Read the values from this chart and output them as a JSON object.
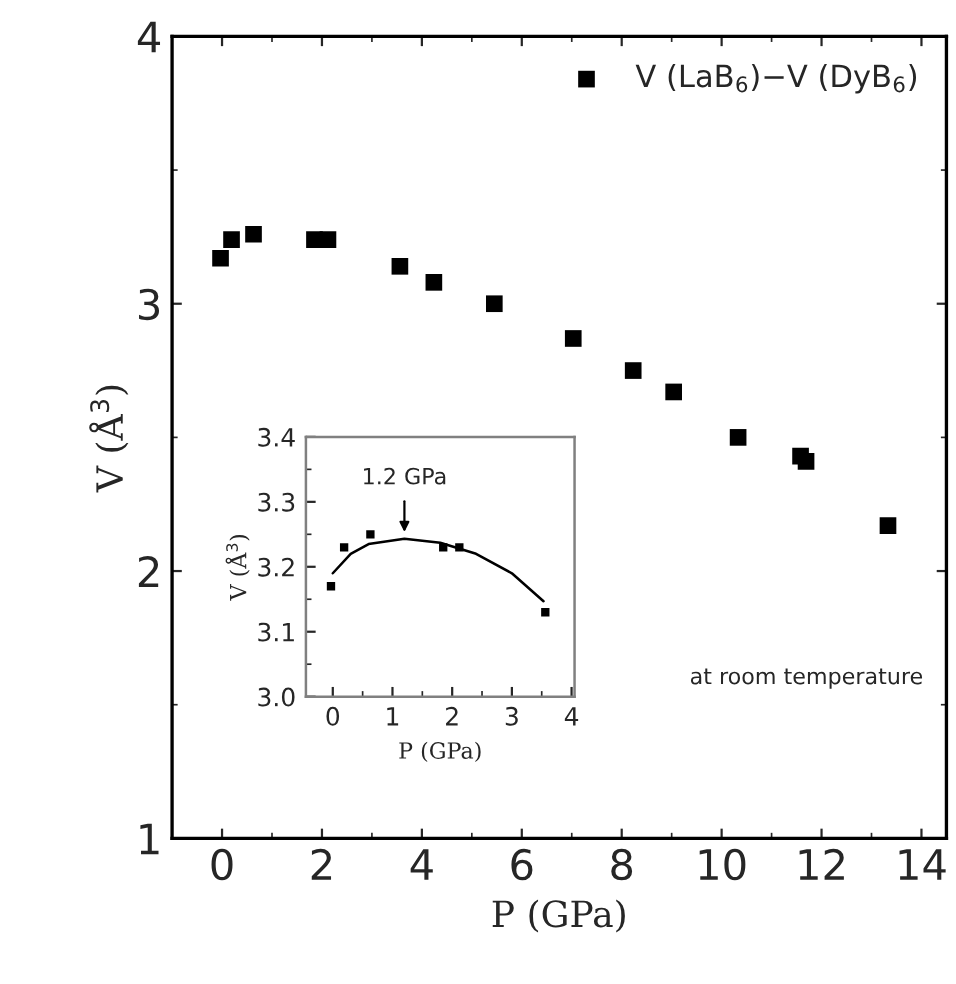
{
  "chart_data": [
    {
      "type": "scatter",
      "xlabel": "P (GPa)",
      "ylabel": "V (Å$^{3}$)",
      "xlim": [
        -1,
        14.5
      ],
      "ylim": [
        1,
        4
      ],
      "xticks": [
        0,
        2,
        4,
        6,
        8,
        10,
        12,
        14
      ],
      "yticks": [
        1,
        2,
        3,
        4
      ],
      "marker": "square",
      "legend": "top right",
      "grid": false,
      "annotations": [
        "at room temperature"
      ],
      "x": [
        -0.03,
        0.19,
        0.63,
        1.85,
        2.12,
        3.56,
        4.24,
        5.45,
        7.03,
        8.23,
        9.04,
        10.33,
        11.58,
        11.69,
        13.33
      ],
      "series": [
        {
          "name": "V (LaB$_{6}$)−V (DyB$_{6}$)",
          "color": "#000000",
          "values": [
            3.17,
            3.24,
            3.26,
            3.24,
            3.24,
            3.14,
            3.08,
            3.0,
            2.87,
            2.75,
            2.67,
            2.5,
            2.43,
            2.41,
            2.17
          ]
        }
      ]
    },
    {
      "type": "scatter",
      "xlabel": "P (GPa)",
      "ylabel": "V (Å$^{3}$)",
      "xlim": [
        -0.45,
        4.05
      ],
      "ylim": [
        3.0,
        3.4
      ],
      "xticks": [
        0,
        1,
        2,
        3,
        4
      ],
      "yticks": [
        {
          "value": 3.0,
          "label": "3.0"
        },
        {
          "value": 3.1,
          "label": "3.1"
        },
        {
          "value": 3.2,
          "label": "3.2"
        },
        {
          "value": 3.3,
          "label": "3.3"
        },
        {
          "value": 3.4,
          "label": "3.4"
        }
      ],
      "marker": "square",
      "grid": false,
      "annotations": [
        {
          "text": "1.2 GPa",
          "x": 1.2,
          "y": 3.245
        }
      ],
      "series": [
        {
          "color": "#000000",
          "x": [
            -0.03,
            0.19,
            0.63,
            1.85,
            2.12,
            3.56
          ],
          "values": [
            3.17,
            3.23,
            3.25,
            3.23,
            3.23,
            3.13
          ]
        },
        {
          "type": "line",
          "marker": "none",
          "color": "#000000",
          "x": [
            0.0,
            0.3,
            0.6,
            1.2,
            1.8,
            2.4,
            3.0,
            3.53
          ],
          "values": [
            3.19,
            3.22,
            3.235,
            3.243,
            3.237,
            3.22,
            3.19,
            3.147
          ]
        }
      ]
    }
  ]
}
